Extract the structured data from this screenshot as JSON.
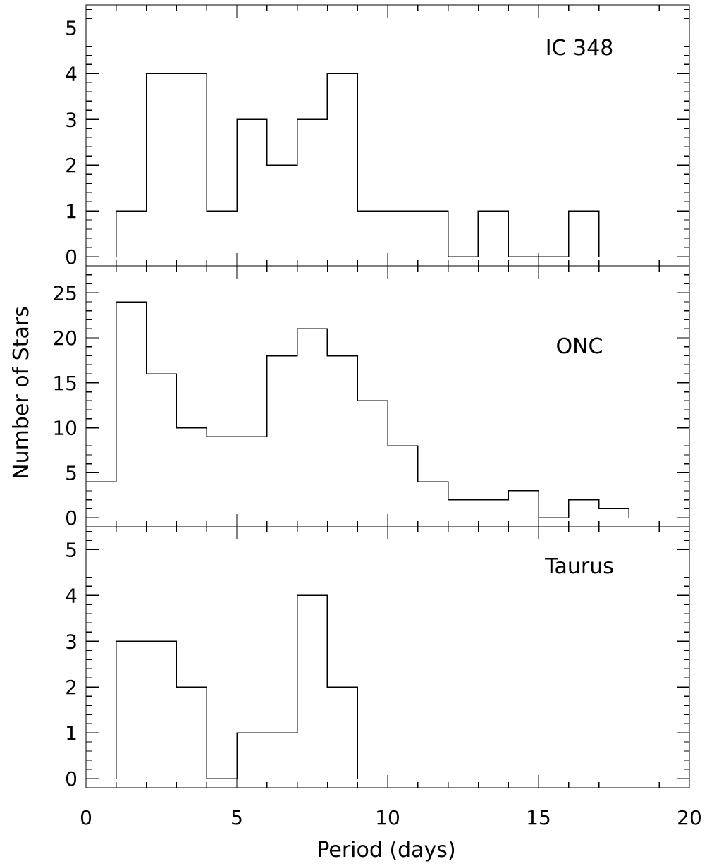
{
  "chart_data": {
    "type": "histogram",
    "x_axis": {
      "label": "Period (days)",
      "range": [
        0,
        20
      ],
      "ticks": [
        "0",
        "5",
        "10",
        "15",
        "20"
      ],
      "minor_step": 1
    },
    "y_axis_label": "Number of Stars",
    "panels": [
      {
        "label": "IC 348",
        "ylim": [
          -0.2,
          5.5
        ],
        "yticks": [
          "0",
          "1",
          "2",
          "3",
          "4",
          "5"
        ],
        "bins": [
          {
            "x0": 1,
            "x1": 2,
            "count": 1
          },
          {
            "x0": 2,
            "x1": 3,
            "count": 4
          },
          {
            "x0": 3,
            "x1": 4,
            "count": 4
          },
          {
            "x0": 4,
            "x1": 5,
            "count": 1
          },
          {
            "x0": 5,
            "x1": 6,
            "count": 3
          },
          {
            "x0": 6,
            "x1": 7,
            "count": 2
          },
          {
            "x0": 7,
            "x1": 8,
            "count": 3
          },
          {
            "x0": 8,
            "x1": 9,
            "count": 4
          },
          {
            "x0": 9,
            "x1": 10,
            "count": 1
          },
          {
            "x0": 10,
            "x1": 11,
            "count": 1
          },
          {
            "x0": 11,
            "x1": 12,
            "count": 1
          },
          {
            "x0": 12,
            "x1": 13,
            "count": 0
          },
          {
            "x0": 13,
            "x1": 14,
            "count": 1
          },
          {
            "x0": 14,
            "x1": 15,
            "count": 0
          },
          {
            "x0": 15,
            "x1": 16,
            "count": 0
          },
          {
            "x0": 16,
            "x1": 17,
            "count": 1
          }
        ]
      },
      {
        "label": "ONC",
        "ylim": [
          -1,
          28
        ],
        "yticks": [
          "0",
          "5",
          "10",
          "15",
          "20",
          "25"
        ],
        "bins": [
          {
            "x0": 0,
            "x1": 1,
            "count": 4
          },
          {
            "x0": 1,
            "x1": 2,
            "count": 24
          },
          {
            "x0": 2,
            "x1": 3,
            "count": 16
          },
          {
            "x0": 3,
            "x1": 4,
            "count": 10
          },
          {
            "x0": 4,
            "x1": 5,
            "count": 9
          },
          {
            "x0": 5,
            "x1": 6,
            "count": 9
          },
          {
            "x0": 6,
            "x1": 7,
            "count": 18
          },
          {
            "x0": 7,
            "x1": 8,
            "count": 21
          },
          {
            "x0": 8,
            "x1": 9,
            "count": 18
          },
          {
            "x0": 9,
            "x1": 10,
            "count": 13
          },
          {
            "x0": 10,
            "x1": 11,
            "count": 8
          },
          {
            "x0": 11,
            "x1": 12,
            "count": 4
          },
          {
            "x0": 12,
            "x1": 13,
            "count": 2
          },
          {
            "x0": 13,
            "x1": 14,
            "count": 2
          },
          {
            "x0": 14,
            "x1": 15,
            "count": 3
          },
          {
            "x0": 15,
            "x1": 16,
            "count": 0
          },
          {
            "x0": 16,
            "x1": 17,
            "count": 2
          },
          {
            "x0": 17,
            "x1": 18,
            "count": 1
          }
        ]
      },
      {
        "label": "Taurus",
        "ylim": [
          -0.2,
          5.5
        ],
        "yticks": [
          "0",
          "1",
          "2",
          "3",
          "4",
          "5"
        ],
        "bins": [
          {
            "x0": 1,
            "x1": 2,
            "count": 3
          },
          {
            "x0": 2,
            "x1": 3,
            "count": 3
          },
          {
            "x0": 3,
            "x1": 4,
            "count": 2
          },
          {
            "x0": 4,
            "x1": 5,
            "count": 0
          },
          {
            "x0": 5,
            "x1": 6,
            "count": 1
          },
          {
            "x0": 6,
            "x1": 7,
            "count": 1
          },
          {
            "x0": 7,
            "x1": 8,
            "count": 4
          },
          {
            "x0": 8,
            "x1": 9,
            "count": 2
          }
        ]
      }
    ]
  }
}
